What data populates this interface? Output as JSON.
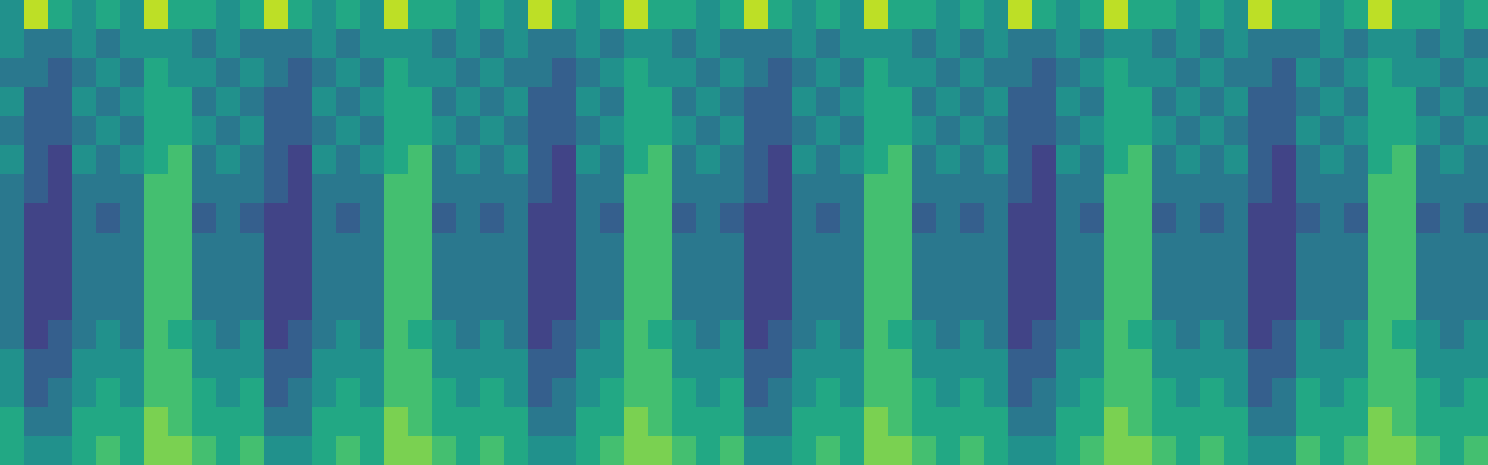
{
  "chart_data": {
    "type": "heatmap",
    "tick_labels": false,
    "color": "viridis",
    "zlim": [
      0,
      10
    ],
    "cells": [
      [
        5,
        9,
        6,
        5,
        6,
        5,
        9,
        6,
        6,
        5,
        6,
        9,
        6,
        5,
        6,
        5,
        9,
        6,
        6,
        5,
        6,
        5,
        9,
        6,
        5,
        6,
        9,
        6,
        6,
        5,
        6,
        9,
        6,
        5,
        6,
        5,
        9,
        6,
        6,
        5,
        6,
        5,
        9,
        6,
        5,
        6,
        9,
        6,
        6,
        5,
        6,
        5,
        9,
        6,
        6,
        5,
        6,
        9,
        6,
        6,
        5,
        6
      ],
      [
        5,
        4,
        4,
        5,
        4,
        5,
        5,
        5,
        4,
        5,
        4,
        4,
        4,
        5,
        4,
        5,
        5,
        5,
        4,
        5,
        4,
        5,
        4,
        4,
        5,
        4,
        5,
        5,
        4,
        5,
        4,
        4,
        4,
        5,
        4,
        5,
        5,
        5,
        4,
        5,
        4,
        5,
        4,
        4,
        5,
        4,
        5,
        5,
        4,
        5,
        4,
        5,
        4,
        4,
        4,
        5,
        4,
        5,
        5,
        4,
        5,
        4
      ],
      [
        4,
        4,
        3,
        4,
        5,
        4,
        6,
        5,
        5,
        4,
        5,
        4,
        3,
        4,
        5,
        4,
        6,
        5,
        5,
        4,
        5,
        4,
        4,
        3,
        4,
        5,
        6,
        5,
        5,
        4,
        5,
        4,
        3,
        4,
        5,
        4,
        6,
        5,
        5,
        4,
        5,
        4,
        4,
        3,
        4,
        5,
        6,
        5,
        5,
        4,
        5,
        4,
        4,
        3,
        5,
        4,
        5,
        6,
        5,
        5,
        4,
        5
      ],
      [
        5,
        3,
        3,
        5,
        4,
        5,
        6,
        6,
        4,
        5,
        4,
        3,
        3,
        5,
        4,
        5,
        6,
        6,
        4,
        5,
        4,
        5,
        3,
        3,
        5,
        4,
        6,
        6,
        4,
        5,
        4,
        3,
        3,
        5,
        4,
        5,
        6,
        6,
        4,
        5,
        4,
        5,
        3,
        3,
        5,
        4,
        6,
        6,
        4,
        5,
        4,
        5,
        3,
        3,
        4,
        5,
        4,
        6,
        6,
        4,
        5,
        4
      ],
      [
        4,
        3,
        3,
        4,
        5,
        4,
        6,
        6,
        5,
        4,
        5,
        3,
        3,
        4,
        5,
        4,
        6,
        6,
        5,
        4,
        5,
        4,
        3,
        3,
        4,
        5,
        6,
        6,
        5,
        4,
        5,
        3,
        3,
        4,
        5,
        4,
        6,
        6,
        5,
        4,
        5,
        4,
        3,
        3,
        4,
        5,
        6,
        6,
        5,
        4,
        5,
        4,
        3,
        3,
        5,
        4,
        5,
        6,
        6,
        5,
        4,
        5
      ],
      [
        5,
        3,
        2,
        5,
        4,
        5,
        6,
        7,
        4,
        5,
        4,
        3,
        2,
        5,
        4,
        5,
        6,
        7,
        4,
        5,
        4,
        5,
        3,
        2,
        5,
        4,
        6,
        7,
        4,
        5,
        4,
        3,
        2,
        5,
        4,
        5,
        6,
        7,
        4,
        5,
        4,
        5,
        3,
        2,
        5,
        4,
        6,
        7,
        4,
        5,
        4,
        5,
        3,
        2,
        4,
        5,
        4,
        6,
        7,
        4,
        5,
        4
      ],
      [
        4,
        3,
        2,
        4,
        4,
        4,
        7,
        7,
        4,
        4,
        4,
        3,
        2,
        4,
        4,
        4,
        7,
        7,
        4,
        4,
        4,
        4,
        3,
        2,
        4,
        4,
        7,
        7,
        4,
        4,
        4,
        3,
        2,
        4,
        4,
        4,
        7,
        7,
        4,
        4,
        4,
        4,
        3,
        2,
        4,
        4,
        7,
        7,
        4,
        4,
        4,
        4,
        3,
        2,
        4,
        4,
        4,
        7,
        7,
        4,
        4,
        4
      ],
      [
        4,
        2,
        2,
        4,
        3,
        4,
        7,
        7,
        3,
        4,
        3,
        2,
        2,
        4,
        3,
        4,
        7,
        7,
        3,
        4,
        3,
        4,
        2,
        2,
        4,
        3,
        7,
        7,
        3,
        4,
        3,
        2,
        2,
        4,
        3,
        4,
        7,
        7,
        3,
        4,
        3,
        4,
        2,
        2,
        4,
        3,
        7,
        7,
        3,
        4,
        3,
        4,
        2,
        2,
        3,
        4,
        3,
        7,
        7,
        3,
        4,
        3
      ],
      [
        4,
        2,
        2,
        4,
        4,
        4,
        7,
        7,
        4,
        4,
        4,
        2,
        2,
        4,
        4,
        4,
        7,
        7,
        4,
        4,
        4,
        4,
        2,
        2,
        4,
        4,
        7,
        7,
        4,
        4,
        4,
        2,
        2,
        4,
        4,
        4,
        7,
        7,
        4,
        4,
        4,
        4,
        2,
        2,
        4,
        4,
        7,
        7,
        4,
        4,
        4,
        4,
        2,
        2,
        4,
        4,
        4,
        7,
        7,
        4,
        4,
        4
      ],
      [
        4,
        2,
        2,
        4,
        4,
        4,
        7,
        7,
        4,
        4,
        4,
        2,
        2,
        4,
        4,
        4,
        7,
        7,
        4,
        4,
        4,
        4,
        2,
        2,
        4,
        4,
        7,
        7,
        4,
        4,
        4,
        2,
        2,
        4,
        4,
        4,
        7,
        7,
        4,
        4,
        4,
        4,
        2,
        2,
        4,
        4,
        7,
        7,
        4,
        4,
        4,
        4,
        2,
        2,
        4,
        4,
        4,
        7,
        7,
        4,
        4,
        4
      ],
      [
        4,
        2,
        2,
        4,
        4,
        4,
        7,
        7,
        4,
        4,
        4,
        2,
        2,
        4,
        4,
        4,
        7,
        7,
        4,
        4,
        4,
        4,
        2,
        2,
        4,
        4,
        7,
        7,
        4,
        4,
        4,
        2,
        2,
        4,
        4,
        4,
        7,
        7,
        4,
        4,
        4,
        4,
        2,
        2,
        4,
        4,
        7,
        7,
        4,
        4,
        4,
        4,
        2,
        2,
        4,
        4,
        4,
        7,
        7,
        4,
        4,
        4
      ],
      [
        4,
        2,
        3,
        4,
        5,
        4,
        7,
        6,
        5,
        4,
        5,
        2,
        3,
        4,
        5,
        4,
        7,
        6,
        5,
        4,
        5,
        4,
        2,
        3,
        4,
        5,
        7,
        6,
        5,
        4,
        5,
        2,
        3,
        4,
        5,
        4,
        7,
        6,
        5,
        4,
        5,
        4,
        2,
        3,
        4,
        5,
        7,
        6,
        5,
        4,
        5,
        4,
        2,
        3,
        5,
        4,
        5,
        7,
        6,
        5,
        4,
        5
      ],
      [
        5,
        3,
        3,
        5,
        5,
        5,
        7,
        7,
        5,
        5,
        5,
        3,
        3,
        5,
        5,
        5,
        7,
        7,
        5,
        5,
        5,
        5,
        3,
        3,
        5,
        5,
        7,
        7,
        5,
        5,
        5,
        3,
        3,
        5,
        5,
        5,
        7,
        7,
        5,
        5,
        5,
        5,
        3,
        3,
        5,
        5,
        7,
        7,
        5,
        5,
        5,
        5,
        3,
        3,
        5,
        5,
        5,
        7,
        7,
        5,
        5,
        5
      ],
      [
        5,
        3,
        4,
        5,
        6,
        5,
        7,
        7,
        6,
        5,
        6,
        3,
        4,
        5,
        6,
        5,
        7,
        7,
        6,
        5,
        6,
        5,
        3,
        4,
        5,
        6,
        7,
        7,
        6,
        5,
        6,
        3,
        4,
        5,
        6,
        5,
        7,
        7,
        6,
        5,
        6,
        5,
        3,
        4,
        5,
        6,
        7,
        7,
        6,
        5,
        6,
        5,
        3,
        4,
        6,
        5,
        6,
        7,
        7,
        6,
        5,
        6
      ],
      [
        6,
        4,
        4,
        6,
        6,
        6,
        8,
        7,
        6,
        6,
        6,
        4,
        4,
        6,
        6,
        6,
        8,
        7,
        6,
        6,
        6,
        6,
        4,
        4,
        6,
        6,
        8,
        7,
        6,
        6,
        6,
        4,
        4,
        6,
        6,
        6,
        8,
        7,
        6,
        6,
        6,
        6,
        4,
        4,
        6,
        6,
        8,
        7,
        6,
        6,
        6,
        6,
        4,
        4,
        6,
        6,
        6,
        8,
        7,
        6,
        6,
        6
      ],
      [
        6,
        5,
        5,
        6,
        7,
        6,
        8,
        8,
        7,
        6,
        7,
        5,
        5,
        6,
        7,
        6,
        8,
        8,
        7,
        6,
        7,
        6,
        5,
        5,
        6,
        7,
        8,
        8,
        7,
        6,
        7,
        5,
        5,
        6,
        7,
        6,
        8,
        8,
        7,
        6,
        7,
        6,
        5,
        5,
        6,
        7,
        8,
        8,
        7,
        6,
        7,
        6,
        5,
        5,
        7,
        6,
        7,
        8,
        8,
        7,
        6,
        7
      ]
    ]
  }
}
